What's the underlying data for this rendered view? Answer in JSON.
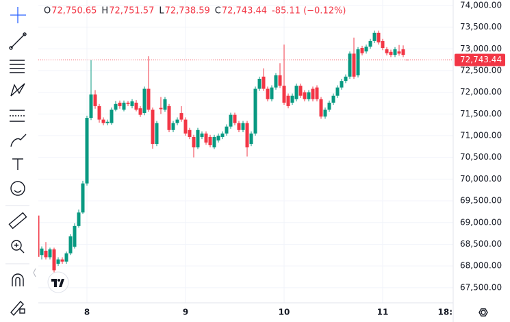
{
  "chart_data": {
    "type": "candlestick",
    "ohlc_header": [
      {
        "key": "O",
        "value": "72,750.65"
      },
      {
        "key": "H",
        "value": "72,751.57"
      },
      {
        "key": "L",
        "value": "72,738.59"
      },
      {
        "key": "C",
        "value": "72,743.44"
      }
    ],
    "change": "-85.11 (−0.12%)",
    "up_color": "#089981",
    "down_color": "#f23645",
    "grid": true,
    "categories": [
      null,
      null,
      null,
      null,
      null,
      null,
      null,
      null,
      null,
      null,
      null,
      null,
      "8",
      null,
      null,
      null,
      null,
      null,
      null,
      null,
      null,
      null,
      null,
      null,
      null,
      null,
      null,
      null,
      null,
      null,
      null,
      null,
      null,
      null,
      null,
      null,
      "9",
      null,
      null,
      null,
      null,
      null,
      null,
      null,
      null,
      null,
      null,
      null,
      null,
      null,
      null,
      null,
      null,
      null,
      null,
      null,
      null,
      null,
      null,
      null,
      "10",
      null,
      null,
      null,
      null,
      null,
      null,
      null,
      null,
      null,
      null,
      null,
      null,
      null,
      null,
      null,
      null,
      null,
      null,
      null,
      null,
      null,
      null,
      null,
      "11",
      null,
      null,
      null,
      null,
      null,
      null,
      null,
      null,
      null,
      null,
      null,
      null,
      null,
      null,
      null,
      null,
      null,
      "18:"
    ],
    "open": [
      69160,
      68250,
      68350,
      68200,
      68380,
      68050,
      68150,
      68100,
      68290,
      68440,
      68920,
      69230,
      69900,
      71410,
      71950,
      71680,
      71370,
      71290,
      71290,
      71600,
      71760,
      71600,
      71760,
      71680,
      71760,
      71630,
      71520,
      72080,
      71600,
      70810,
      71640,
      71600,
      71680,
      71130,
      71290,
      71520,
      71370,
      71130,
      70970,
      70730,
      70970,
      71050,
      70970,
      70730,
      70890,
      70970,
      71050,
      71210,
      71480,
      71290,
      71130,
      71290,
      70810,
      71050,
      72080,
      72360,
      72080,
      71840,
      72110,
      72390,
      72150,
      71920,
      71760,
      71840,
      72150,
      72000,
      71840,
      72080,
      72110,
      71840,
      71440,
      71600,
      71760,
      71920,
      72110,
      72260,
      72360,
      72890,
      72390,
      73020,
      72940,
      73050,
      73180,
      73370,
      73180,
      72990,
      72930,
      72860,
      72940,
      72990,
      72750.65,
      null,
      null,
      null,
      null,
      null,
      null,
      null,
      null,
      null,
      null,
      null,
      null
    ],
    "high": [
      69250,
      68450,
      68550,
      68420,
      68420,
      68200,
      68200,
      68330,
      68730,
      68980,
      69300,
      69960,
      71460,
      72740,
      72050,
      71730,
      71420,
      71370,
      71650,
      71800,
      71810,
      71810,
      71800,
      71840,
      71820,
      71680,
      72130,
      72830,
      71650,
      71340,
      71890,
      71890,
      71730,
      71340,
      71420,
      71680,
      71420,
      71180,
      71020,
      71180,
      71100,
      71100,
      71020,
      71020,
      71050,
      71100,
      71260,
      71530,
      71530,
      71340,
      71340,
      71340,
      71100,
      72130,
      72360,
      72550,
      72130,
      72160,
      72440,
      72670,
      73100,
      71970,
      71970,
      72200,
      72200,
      72050,
      72050,
      72130,
      72160,
      71890,
      71650,
      71810,
      71970,
      72160,
      72310,
      72410,
      72940,
      73260,
      73040,
      73070,
      73100,
      73230,
      73420,
      73420,
      73230,
      73040,
      72980,
      73040,
      73090,
      73080,
      72751.57,
      null,
      null,
      null,
      null,
      null,
      null,
      null,
      null,
      null,
      null,
      null,
      null
    ],
    "low": [
      68150,
      68150,
      68150,
      68150,
      67850,
      68000,
      68050,
      68050,
      68250,
      68400,
      68880,
      69200,
      69850,
      71360,
      71620,
      71300,
      71240,
      71240,
      71250,
      71560,
      71620,
      71560,
      71680,
      71630,
      71560,
      71430,
      71470,
      71550,
      70700,
      70760,
      71500,
      71550,
      71080,
      71080,
      71240,
      71320,
      71000,
      70920,
      70500,
      70690,
      70920,
      70790,
      70730,
      70690,
      70840,
      70920,
      71000,
      71160,
      71240,
      71080,
      71080,
      70520,
      70760,
      71000,
      72030,
      72030,
      71790,
      71790,
      72060,
      72100,
      71710,
      71630,
      71710,
      71790,
      71870,
      71790,
      71790,
      71790,
      71790,
      71390,
      71390,
      71550,
      71710,
      71870,
      72060,
      72210,
      72310,
      72310,
      72340,
      72850,
      72890,
      73000,
      73130,
      73100,
      72970,
      72850,
      72810,
      72810,
      72840,
      72810,
      72738.59,
      null,
      null,
      null,
      null,
      null,
      null,
      null,
      null,
      null,
      null,
      null,
      null
    ],
    "close": [
      68210,
      68400,
      68200,
      68380,
      67900,
      68150,
      68100,
      68290,
      68680,
      68920,
      69230,
      69900,
      71410,
      71950,
      71680,
      71370,
      71290,
      71320,
      71600,
      71730,
      71680,
      71760,
      71730,
      71790,
      71600,
      71480,
      72080,
      71600,
      70810,
      71290,
      71610,
      71840,
      71130,
      71290,
      71370,
      71370,
      71050,
      70970,
      70730,
      71130,
      71050,
      70840,
      70780,
      70970,
      71000,
      71050,
      71210,
      71480,
      71290,
      71130,
      71290,
      70730,
      71050,
      72080,
      72310,
      72080,
      71840,
      72110,
      72390,
      72150,
      71760,
      71680,
      71920,
      72150,
      71920,
      71840,
      72000,
      71840,
      71840,
      71440,
      71600,
      71760,
      71920,
      72110,
      72260,
      72360,
      72890,
      72360,
      72990,
      72900,
      73050,
      73180,
      73370,
      73150,
      73020,
      72900,
      72860,
      72990,
      72890,
      72860,
      72743.44,
      null,
      null,
      null,
      null,
      null,
      null,
      null,
      null,
      null,
      null,
      null,
      null
    ],
    "ylim": [
      67150,
      74125
    ],
    "yticks": [
      {
        "value": 74000,
        "label": "74,000.00"
      },
      {
        "value": 73500,
        "label": "73,500.00"
      },
      {
        "value": 73000,
        "label": "73,000.00"
      },
      {
        "value": 72500,
        "label": "72,500.00"
      },
      {
        "value": 72000,
        "label": "72,000.00"
      },
      {
        "value": 71500,
        "label": "71,500.00"
      },
      {
        "value": 71000,
        "label": "71,000.00"
      },
      {
        "value": 70500,
        "label": "70,500.00"
      },
      {
        "value": 70000,
        "label": "70,000.00"
      },
      {
        "value": 69500,
        "label": "69,500.00"
      },
      {
        "value": 69000,
        "label": "69,000.00"
      },
      {
        "value": 68500,
        "label": "68,500.00"
      },
      {
        "value": 68000,
        "label": "68,000.00"
      },
      {
        "value": 67500,
        "label": "67,500.00"
      }
    ],
    "last_price": {
      "value": 72743.44,
      "label": "72,743.44"
    }
  }
}
